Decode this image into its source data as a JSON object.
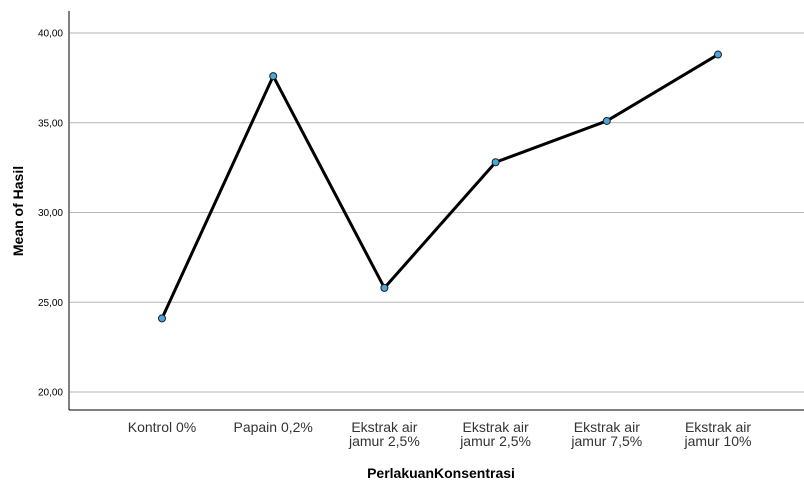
{
  "chart_data": {
    "type": "line",
    "title": "",
    "xlabel": "PerlakuanKonsentrasi",
    "ylabel": "Mean of Hasil",
    "ylim": [
      19,
      41
    ],
    "yticks": [
      "20,00",
      "25,00",
      "30,00",
      "35,00",
      "40,00"
    ],
    "ytick_values": [
      20,
      25,
      30,
      35,
      40
    ],
    "grid": true,
    "legend": "none",
    "categories": [
      [
        "Kontrol 0%"
      ],
      [
        "Papain 0,2%"
      ],
      [
        "Ekstrak air",
        "jamur 2,5%"
      ],
      [
        "Ekstrak air",
        "jamur 2,5%"
      ],
      [
        "Ekstrak air",
        "jamur 7,5%"
      ],
      [
        "Ekstrak air",
        "jamur 10%"
      ]
    ],
    "series": [
      {
        "values": [
          24.1,
          37.6,
          25.8,
          32.8,
          35.1,
          38.8
        ]
      }
    ],
    "colors": {
      "line": "#000000",
      "marker_fill": "#4aa6e0",
      "marker_stroke": "#1f1f1f",
      "grid": "#b5b5b5"
    }
  }
}
